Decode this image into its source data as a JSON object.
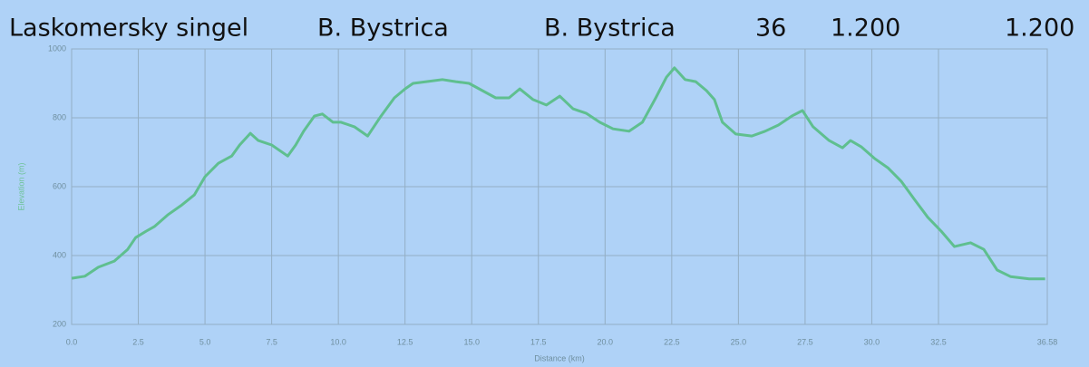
{
  "header": {
    "cells": [
      "Laskomersky singel",
      "B. Bystrica",
      "B. Bystrica",
      "36",
      "1.200",
      "1.200"
    ]
  },
  "chart_data": {
    "type": "line",
    "xlabel": "Distance (km)",
    "ylabel": "Elevation (m)",
    "color": "#5fbf8f",
    "grid": true,
    "xlim": [
      0,
      36.58
    ],
    "ylim": [
      200,
      1000
    ],
    "xticks": [
      {
        "value": 0,
        "label": "0.0"
      },
      2.5,
      {
        "value": 5,
        "label": "5.0"
      },
      7.5,
      {
        "value": 10,
        "label": "10.0"
      },
      12.5,
      {
        "value": 15,
        "label": "15.0"
      },
      17.5,
      {
        "value": 20,
        "label": "20.0"
      },
      22.5,
      {
        "value": 25,
        "label": "25.0"
      },
      27.5,
      {
        "value": 30,
        "label": "30.0"
      },
      32.5,
      36.58
    ],
    "yticks": [
      200,
      400,
      600,
      800,
      1000
    ],
    "x": [
      0,
      0.5,
      1.0,
      1.6,
      2.1,
      2.4,
      2.8,
      3.1,
      3.6,
      4.1,
      4.6,
      5.0,
      5.5,
      6.0,
      6.3,
      6.7,
      7.0,
      7.5,
      8.1,
      8.4,
      8.7,
      9.1,
      9.4,
      9.8,
      10.1,
      10.6,
      11.1,
      11.6,
      12.1,
      12.5,
      12.8,
      13.3,
      13.9,
      14.4,
      14.9,
      15.4,
      15.9,
      16.4,
      16.8,
      17.3,
      17.8,
      18.3,
      18.8,
      19.3,
      19.8,
      20.3,
      20.9,
      21.4,
      21.9,
      22.3,
      22.6,
      23.0,
      23.4,
      23.8,
      24.1,
      24.4,
      24.9,
      25.5,
      26.0,
      26.5,
      27.0,
      27.4,
      27.8,
      28.4,
      28.9,
      29.2,
      29.6,
      30.1,
      30.6,
      31.1,
      31.6,
      32.1,
      32.6,
      33.1,
      33.7,
      34.2,
      34.7,
      35.2,
      35.9,
      36.5
    ],
    "values": [
      334,
      340,
      366,
      384,
      418,
      452,
      471,
      484,
      518,
      545,
      576,
      629,
      668,
      689,
      721,
      755,
      734,
      721,
      689,
      721,
      761,
      805,
      811,
      787,
      787,
      774,
      747,
      805,
      858,
      884,
      900,
      905,
      911,
      905,
      900,
      879,
      858,
      858,
      884,
      853,
      837,
      863,
      826,
      813,
      787,
      768,
      761,
      787,
      858,
      918,
      945,
      911,
      905,
      879,
      853,
      787,
      753,
      747,
      761,
      779,
      805,
      821,
      774,
      734,
      713,
      734,
      716,
      682,
      655,
      616,
      563,
      511,
      471,
      426,
      437,
      418,
      358,
      339,
      332,
      332
    ]
  }
}
